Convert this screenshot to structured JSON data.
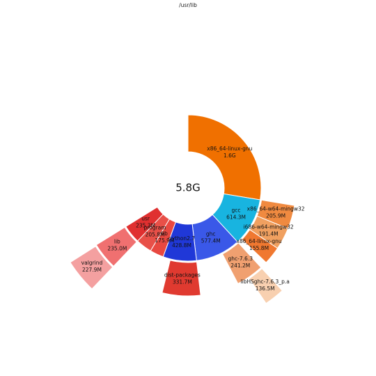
{
  "chart_data": {
    "type": "sunburst",
    "title": "/usr/lib",
    "total": 5800,
    "total_label": "5.8G",
    "nodes": [
      {
        "name": "x86_64-linux-gnu",
        "size": 1600,
        "size_label": "1.6G",
        "color": "#f07000",
        "children": []
      },
      {
        "name": "gcc",
        "size": 614.3,
        "size_label": "614.3M",
        "color": "#18b4e0",
        "children": [
          {
            "name": "x86_64-w64-mingw32",
            "size": 205.9,
            "size_label": "205.9M",
            "color": "#f08a40",
            "children": []
          },
          {
            "name": "i686-w64-mingw32",
            "size": 191.4,
            "size_label": "191.4M",
            "color": "#f0a060",
            "children": []
          },
          {
            "name": "x86_64-linux-gnu",
            "size": 155.8,
            "size_label": "155.8M",
            "color": "#f07830",
            "children": []
          }
        ]
      },
      {
        "name": "ghc",
        "size": 577.4,
        "size_label": "577.4M",
        "color": "#3a58e8",
        "children": [
          {
            "name": "ghc-7.6.3",
            "size": 241.2,
            "size_label": "241.2M",
            "color": "#f0a070",
            "children": [
              {
                "name": "libHSghc-7.6.3_p.a",
                "size": 136.5,
                "size_label": "136.5M",
                "color": "#f8d0b0",
                "children": []
              }
            ]
          }
        ]
      },
      {
        "name": "python2.7",
        "size": 428.8,
        "size_label": "428.8M",
        "color": "#2038d8",
        "children": [
          {
            "name": "dist-packages",
            "size": 331.7,
            "size_label": "331.7M",
            "color": "#e03a30",
            "children": []
          }
        ]
      },
      {
        "name": "lib",
        "size": 175.9,
        "size_label": "175.9M",
        "color": "#e84840",
        "children": []
      },
      {
        "name": "program",
        "size": 205.8,
        "size_label": "205.8M",
        "color": "#e85048",
        "children": []
      },
      {
        "name": "usr",
        "size": 235.3,
        "size_label": "235.3M",
        "color": "#e03030",
        "children": [
          {
            "name": "lib",
            "size": 235.0,
            "size_label": "235.0M",
            "color": "#f07070",
            "children": [
              {
                "name": "valgrind",
                "size": 227.9,
                "size_label": "227.9M",
                "color": "#f4a0a0",
                "children": []
              }
            ]
          }
        ]
      }
    ]
  }
}
